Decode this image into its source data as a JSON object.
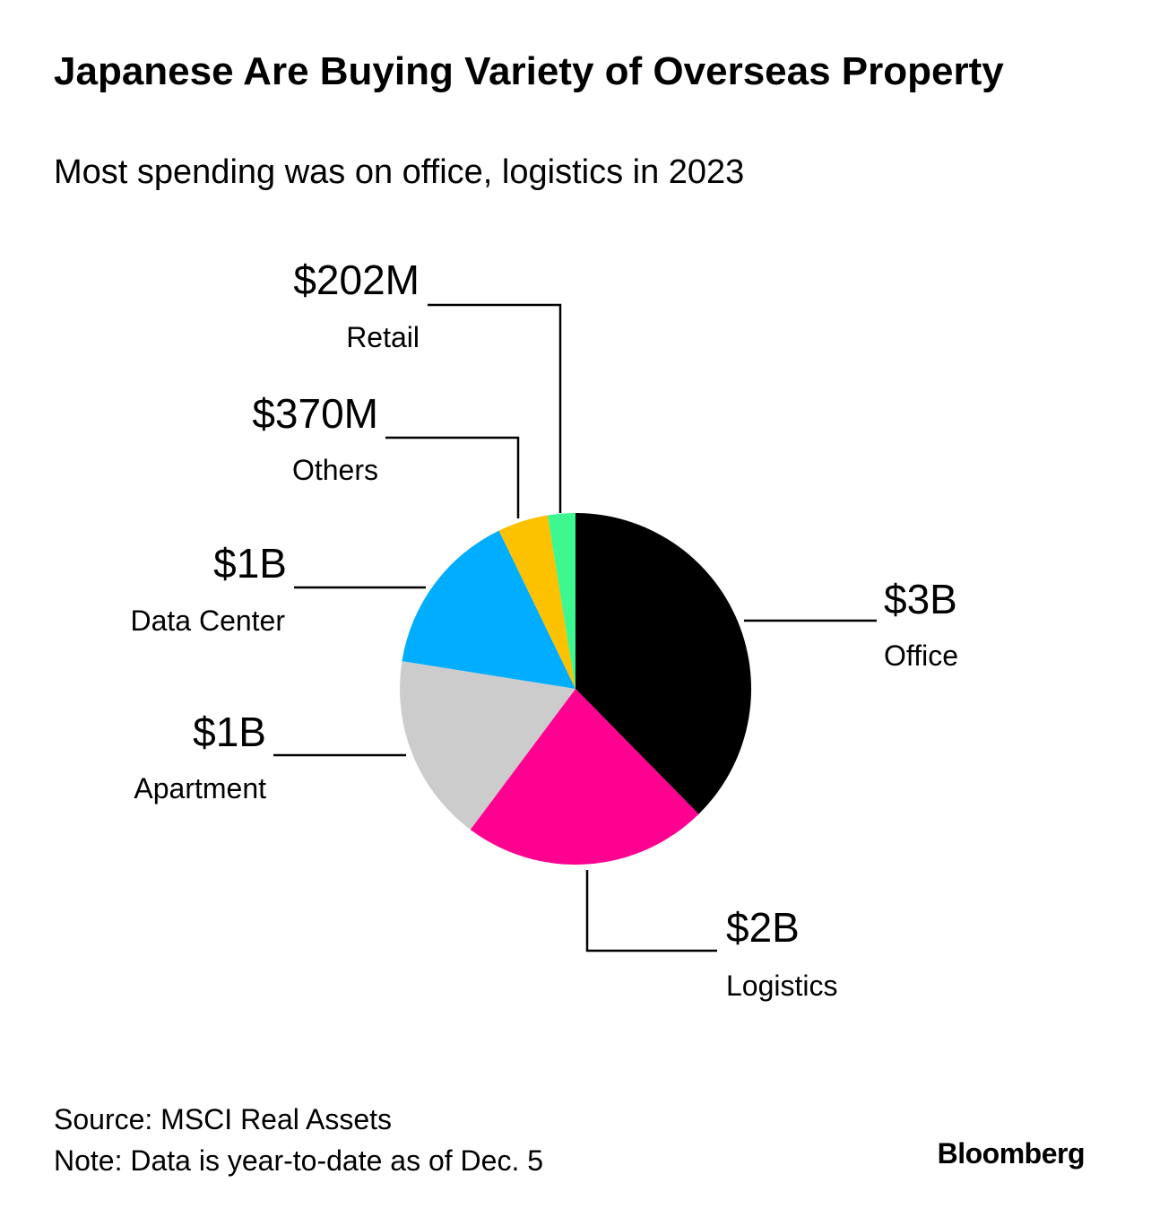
{
  "header": {
    "title": "Japanese Are Buying Variety of Overseas Property",
    "subtitle": "Most spending was on office, logistics in 2023"
  },
  "chart_data": {
    "type": "pie",
    "title": "Japanese Are Buying Variety of Overseas Property",
    "subtitle": "Most spending was on office, logistics in 2023",
    "slices": [
      {
        "category": "Office",
        "label": "$3B",
        "value": 3000,
        "color": "#000000"
      },
      {
        "category": "Logistics",
        "label": "$2B",
        "value": 1800,
        "color": "#ff0090"
      },
      {
        "category": "Apartment",
        "label": "$1B",
        "value": 1380,
        "color": "#cccccc"
      },
      {
        "category": "Data Center",
        "label": "$1B",
        "value": 1220,
        "color": "#00adff"
      },
      {
        "category": "Others",
        "label": "$370M",
        "value": 370,
        "color": "#fcc200"
      },
      {
        "category": "Retail",
        "label": "$202M",
        "value": 202,
        "color": "#3df790"
      }
    ],
    "units": "USD millions",
    "legend": "direct labels"
  },
  "footer": {
    "source": "Source: MSCI Real Assets",
    "note": "Note: Data is year-to-date as of Dec. 5",
    "brand": "Bloomberg"
  }
}
